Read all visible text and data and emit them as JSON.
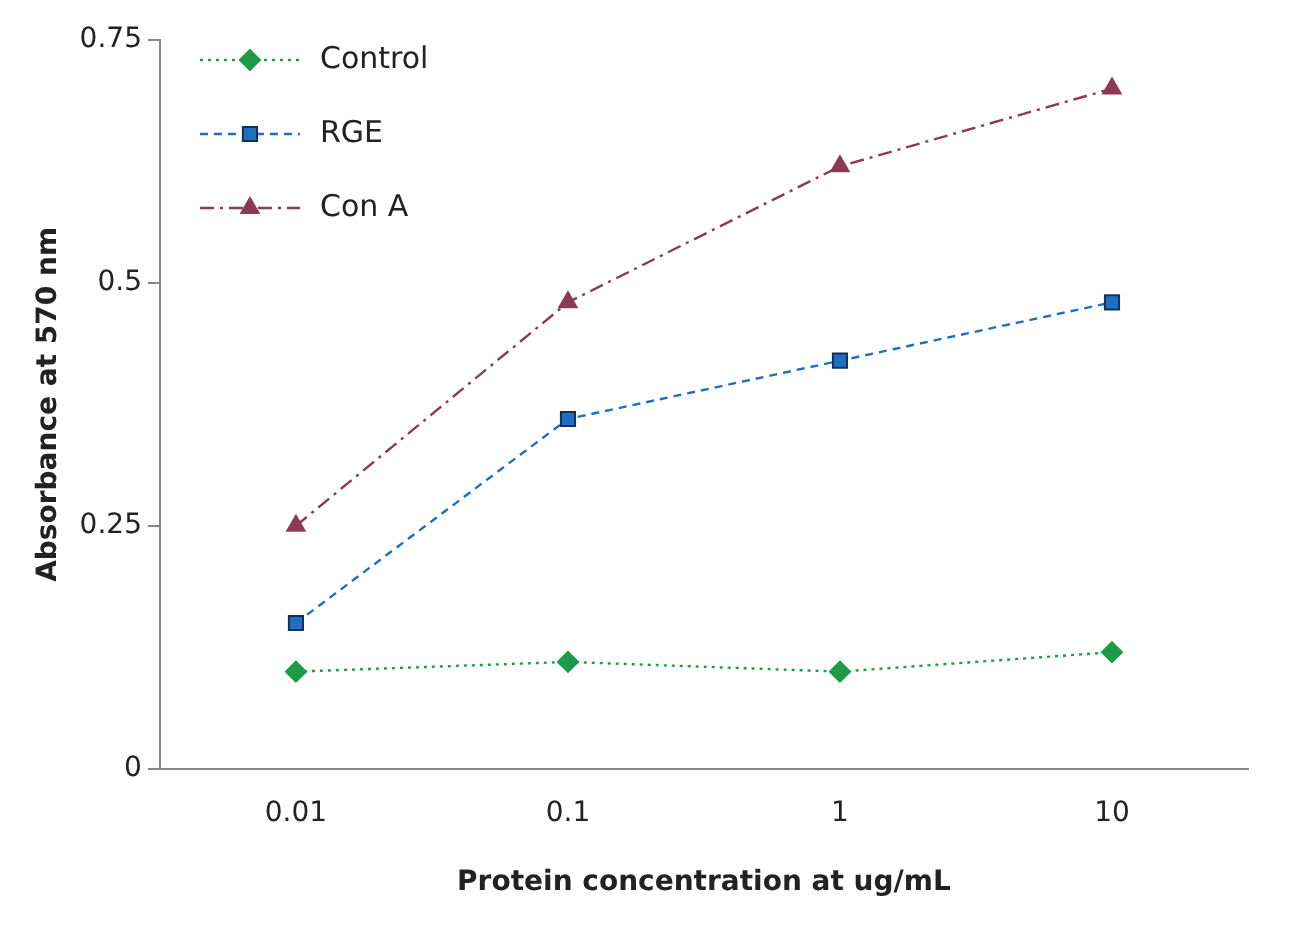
{
  "chart_data": {
    "type": "line",
    "xlabel": "Protein concentration at ug/mL",
    "ylabel": "Absorbance at 570 nm",
    "categories": [
      "0.01",
      "0.1",
      "1",
      "10"
    ],
    "series": [
      {
        "name": "Control",
        "color": "#1e9a4a",
        "values": [
          0.1,
          0.11,
          0.1,
          0.12
        ],
        "marker": "diamond",
        "line_style": "dotted"
      },
      {
        "name": "RGE",
        "color": "#1f6fc0",
        "values": [
          0.15,
          0.36,
          0.42,
          0.48
        ],
        "marker": "square",
        "line_style": "dashed"
      },
      {
        "name": "Con A",
        "color": "#8b3a55",
        "values": [
          0.25,
          0.48,
          0.62,
          0.7
        ],
        "marker": "triangle",
        "line_style": "dashdot"
      }
    ],
    "ylim": [
      0,
      0.75
    ],
    "yticks": [
      0,
      0.25,
      0.5,
      0.75
    ],
    "grid": false,
    "legend": "top left"
  }
}
